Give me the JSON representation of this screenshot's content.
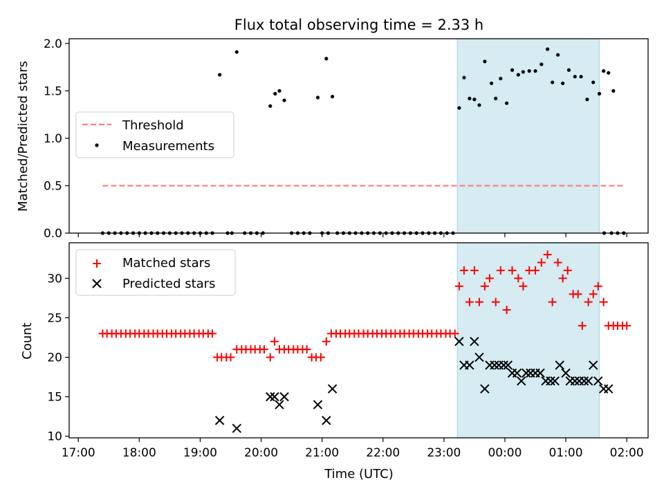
{
  "title": "Flux total observing time = 2.33 h",
  "colors": {
    "threshold": "#ff7f7f",
    "measurement": "#000000",
    "matched": "#ff0000",
    "predicted": "#000000",
    "span": "#add8e6"
  },
  "chart_data": [
    {
      "type": "scatter",
      "title": "Flux total observing time = 2.33 h",
      "xlabel": "",
      "ylabel": "Matched/Predicted stars",
      "ylim": [
        0,
        2.05
      ],
      "yticks": [
        0.0,
        0.5,
        1.0,
        1.5,
        2.0
      ],
      "ytick_labels": [
        "0.0",
        "0.5",
        "1.0",
        "1.5",
        "2.0"
      ],
      "x_unit": "hours after 17:00 UTC",
      "xlim": [
        -0.15,
        9.35
      ],
      "highlight_span": [
        6.22,
        8.55
      ],
      "legend": {
        "placement": "center-left",
        "entries": [
          "Threshold",
          "Measurements"
        ]
      },
      "series": [
        {
          "name": "Threshold",
          "style": "dashed-line",
          "x": [
            0.4,
            8.95
          ],
          "values": [
            0.5,
            0.5
          ]
        },
        {
          "name": "Measurements",
          "style": "dot",
          "points": [
            [
              0.4,
              0
            ],
            [
              0.5,
              0
            ],
            [
              0.6,
              0
            ],
            [
              0.7,
              0
            ],
            [
              0.8,
              0
            ],
            [
              0.9,
              0
            ],
            [
              1.0,
              0
            ],
            [
              1.1,
              0
            ],
            [
              1.2,
              0
            ],
            [
              1.3,
              0
            ],
            [
              1.4,
              0
            ],
            [
              1.5,
              0
            ],
            [
              1.6,
              0
            ],
            [
              1.7,
              0
            ],
            [
              1.8,
              0
            ],
            [
              1.9,
              0
            ],
            [
              2.0,
              0
            ],
            [
              2.1,
              0
            ],
            [
              2.2,
              0
            ],
            [
              2.32,
              1.67
            ],
            [
              2.45,
              0
            ],
            [
              2.52,
              0
            ],
            [
              2.6,
              1.91
            ],
            [
              2.73,
              0
            ],
            [
              2.83,
              0
            ],
            [
              2.93,
              0
            ],
            [
              3.03,
              0
            ],
            [
              3.15,
              1.34
            ],
            [
              3.23,
              1.47
            ],
            [
              3.3,
              1.5
            ],
            [
              3.38,
              1.4
            ],
            [
              3.5,
              0
            ],
            [
              3.6,
              0
            ],
            [
              3.7,
              0
            ],
            [
              3.8,
              0
            ],
            [
              3.93,
              1.43
            ],
            [
              4.0,
              0
            ],
            [
              4.1,
              0
            ],
            [
              4.07,
              1.84
            ],
            [
              4.17,
              1.44
            ],
            [
              4.25,
              0
            ],
            [
              4.35,
              0
            ],
            [
              4.45,
              0
            ],
            [
              4.55,
              0
            ],
            [
              4.65,
              0
            ],
            [
              4.75,
              0
            ],
            [
              4.85,
              0
            ],
            [
              4.95,
              0
            ],
            [
              5.05,
              0
            ],
            [
              5.15,
              0
            ],
            [
              5.25,
              0
            ],
            [
              5.35,
              0
            ],
            [
              5.45,
              0
            ],
            [
              5.55,
              0
            ],
            [
              5.65,
              0
            ],
            [
              5.75,
              0
            ],
            [
              5.85,
              0
            ],
            [
              5.95,
              0
            ],
            [
              6.05,
              0
            ],
            [
              6.15,
              0
            ],
            [
              6.25,
              1.32
            ],
            [
              6.33,
              1.64
            ],
            [
              6.42,
              1.42
            ],
            [
              6.5,
              1.41
            ],
            [
              6.58,
              1.35
            ],
            [
              6.67,
              1.81
            ],
            [
              6.78,
              1.58
            ],
            [
              6.85,
              1.42
            ],
            [
              6.93,
              1.63
            ],
            [
              7.03,
              1.37
            ],
            [
              7.12,
              1.72
            ],
            [
              7.22,
              1.67
            ],
            [
              7.3,
              1.7
            ],
            [
              7.4,
              1.71
            ],
            [
              7.5,
              1.71
            ],
            [
              7.6,
              1.78
            ],
            [
              7.7,
              1.94
            ],
            [
              7.78,
              1.59
            ],
            [
              7.87,
              1.88
            ],
            [
              7.95,
              1.58
            ],
            [
              8.05,
              1.72
            ],
            [
              8.15,
              1.65
            ],
            [
              8.25,
              1.65
            ],
            [
              8.35,
              1.41
            ],
            [
              8.45,
              1.59
            ],
            [
              8.55,
              1.47
            ],
            [
              8.62,
              1.71
            ],
            [
              8.7,
              1.69
            ],
            [
              8.78,
              1.5
            ],
            [
              8.63,
              0
            ],
            [
              8.75,
              0
            ],
            [
              8.85,
              0
            ],
            [
              8.95,
              0
            ]
          ]
        }
      ]
    },
    {
      "type": "scatter",
      "title": "",
      "xlabel": "Time (UTC)",
      "ylabel": "Count",
      "ylim": [
        9.8,
        34.5
      ],
      "yticks": [
        10,
        15,
        20,
        25,
        30
      ],
      "ytick_labels": [
        "10",
        "15",
        "20",
        "25",
        "30"
      ],
      "x_unit": "hours after 17:00 UTC",
      "xlim": [
        -0.15,
        9.35
      ],
      "xticks": [
        0,
        1,
        2,
        3,
        4,
        5,
        6,
        7,
        8,
        9
      ],
      "xtick_labels": [
        "17:00",
        "18:00",
        "19:00",
        "20:00",
        "21:00",
        "22:00",
        "23:00",
        "00:00",
        "01:00",
        "02:00"
      ],
      "highlight_span": [
        6.22,
        8.55
      ],
      "legend": {
        "placement": "top-left",
        "entries": [
          "Matched stars",
          "Predicted stars"
        ]
      },
      "series": [
        {
          "name": "Matched stars",
          "style": "plus",
          "points": [
            [
              0.4,
              23
            ],
            [
              0.47,
              23
            ],
            [
              0.55,
              23
            ],
            [
              0.62,
              23
            ],
            [
              0.7,
              23
            ],
            [
              0.78,
              23
            ],
            [
              0.85,
              23
            ],
            [
              0.93,
              23
            ],
            [
              1.0,
              23
            ],
            [
              1.08,
              23
            ],
            [
              1.15,
              23
            ],
            [
              1.23,
              23
            ],
            [
              1.3,
              23
            ],
            [
              1.38,
              23
            ],
            [
              1.45,
              23
            ],
            [
              1.53,
              23
            ],
            [
              1.6,
              23
            ],
            [
              1.68,
              23
            ],
            [
              1.75,
              23
            ],
            [
              1.83,
              23
            ],
            [
              1.9,
              23
            ],
            [
              1.98,
              23
            ],
            [
              2.05,
              23
            ],
            [
              2.13,
              23
            ],
            [
              2.2,
              23
            ],
            [
              2.28,
              20
            ],
            [
              2.35,
              20
            ],
            [
              2.43,
              20
            ],
            [
              2.5,
              20
            ],
            [
              2.6,
              21
            ],
            [
              2.68,
              21
            ],
            [
              2.75,
              21
            ],
            [
              2.83,
              21
            ],
            [
              2.9,
              21
            ],
            [
              2.98,
              21
            ],
            [
              3.05,
              21
            ],
            [
              3.15,
              20
            ],
            [
              3.22,
              22
            ],
            [
              3.3,
              21
            ],
            [
              3.38,
              21
            ],
            [
              3.45,
              21
            ],
            [
              3.53,
              21
            ],
            [
              3.6,
              21
            ],
            [
              3.68,
              21
            ],
            [
              3.75,
              21
            ],
            [
              3.83,
              20
            ],
            [
              3.9,
              20
            ],
            [
              3.98,
              20
            ],
            [
              4.07,
              22
            ],
            [
              4.15,
              23
            ],
            [
              4.23,
              23
            ],
            [
              4.3,
              23
            ],
            [
              4.38,
              23
            ],
            [
              4.45,
              23
            ],
            [
              4.53,
              23
            ],
            [
              4.6,
              23
            ],
            [
              4.68,
              23
            ],
            [
              4.75,
              23
            ],
            [
              4.83,
              23
            ],
            [
              4.9,
              23
            ],
            [
              4.98,
              23
            ],
            [
              5.05,
              23
            ],
            [
              5.13,
              23
            ],
            [
              5.2,
              23
            ],
            [
              5.28,
              23
            ],
            [
              5.35,
              23
            ],
            [
              5.43,
              23
            ],
            [
              5.5,
              23
            ],
            [
              5.58,
              23
            ],
            [
              5.65,
              23
            ],
            [
              5.73,
              23
            ],
            [
              5.8,
              23
            ],
            [
              5.88,
              23
            ],
            [
              5.95,
              23
            ],
            [
              6.03,
              23
            ],
            [
              6.1,
              23
            ],
            [
              6.18,
              23
            ],
            [
              6.25,
              29
            ],
            [
              6.33,
              31
            ],
            [
              6.42,
              27
            ],
            [
              6.5,
              31
            ],
            [
              6.58,
              27
            ],
            [
              6.67,
              29
            ],
            [
              6.75,
              30
            ],
            [
              6.85,
              27
            ],
            [
              6.93,
              31
            ],
            [
              7.03,
              26
            ],
            [
              7.12,
              31
            ],
            [
              7.22,
              30
            ],
            [
              7.3,
              29
            ],
            [
              7.4,
              31
            ],
            [
              7.5,
              31
            ],
            [
              7.6,
              32
            ],
            [
              7.7,
              33
            ],
            [
              7.78,
              27
            ],
            [
              7.87,
              32
            ],
            [
              7.95,
              30
            ],
            [
              8.03,
              31
            ],
            [
              8.12,
              28
            ],
            [
              8.2,
              28
            ],
            [
              8.27,
              24
            ],
            [
              8.37,
              27
            ],
            [
              8.45,
              28
            ],
            [
              8.53,
              29
            ],
            [
              8.62,
              27
            ],
            [
              8.7,
              24
            ],
            [
              8.78,
              24
            ],
            [
              8.85,
              24
            ],
            [
              8.93,
              24
            ],
            [
              9.0,
              24
            ]
          ]
        },
        {
          "name": "Predicted stars",
          "style": "cross",
          "points": [
            [
              2.32,
              12
            ],
            [
              2.6,
              11
            ],
            [
              3.15,
              15
            ],
            [
              3.22,
              15
            ],
            [
              3.3,
              14
            ],
            [
              3.38,
              15
            ],
            [
              3.93,
              14
            ],
            [
              4.07,
              12
            ],
            [
              4.17,
              16
            ],
            [
              6.25,
              22
            ],
            [
              6.33,
              19
            ],
            [
              6.42,
              19
            ],
            [
              6.5,
              22
            ],
            [
              6.58,
              20
            ],
            [
              6.67,
              16
            ],
            [
              6.75,
              19
            ],
            [
              6.83,
              19
            ],
            [
              6.9,
              19
            ],
            [
              6.98,
              19
            ],
            [
              7.05,
              19
            ],
            [
              7.12,
              18
            ],
            [
              7.2,
              18
            ],
            [
              7.27,
              17
            ],
            [
              7.35,
              18
            ],
            [
              7.42,
              18
            ],
            [
              7.5,
              18
            ],
            [
              7.58,
              18
            ],
            [
              7.67,
              17
            ],
            [
              7.75,
              17
            ],
            [
              7.82,
              17
            ],
            [
              7.9,
              19
            ],
            [
              8.0,
              18
            ],
            [
              8.07,
              17
            ],
            [
              8.15,
              17
            ],
            [
              8.22,
              17
            ],
            [
              8.3,
              17
            ],
            [
              8.37,
              17
            ],
            [
              8.45,
              19
            ],
            [
              8.53,
              17
            ],
            [
              8.62,
              16
            ],
            [
              8.7,
              16
            ]
          ]
        }
      ]
    }
  ]
}
